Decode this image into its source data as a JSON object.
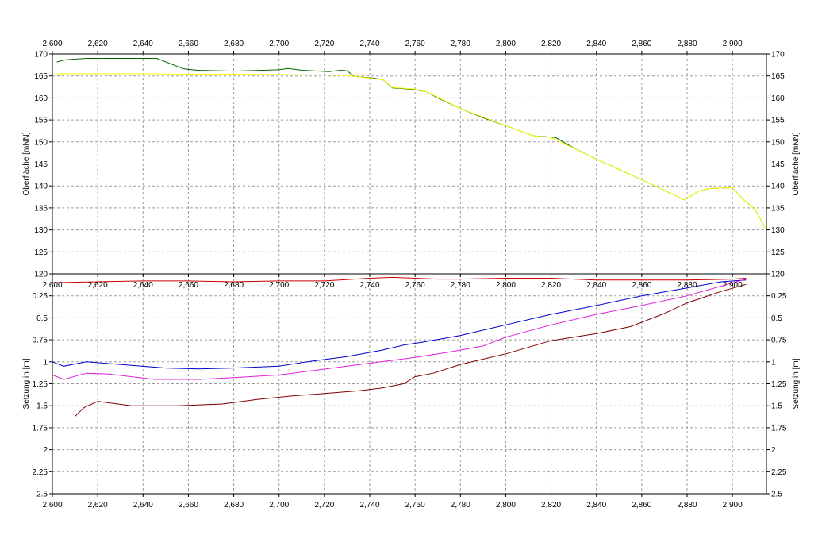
{
  "chart_data": [
    {
      "type": "line",
      "title": "",
      "xlabel": "",
      "ylabel": "Oberfläche [mNN]",
      "ylabel_right": "Oberfläche [mNN]",
      "xlim": [
        2600,
        2915
      ],
      "ylim": [
        120,
        170
      ],
      "x_ticks": [
        2600,
        2620,
        2640,
        2660,
        2680,
        2700,
        2720,
        2740,
        2760,
        2780,
        2800,
        2820,
        2840,
        2860,
        2880,
        2900
      ],
      "x_tick_labels": [
        "2,600",
        "2,620",
        "2,640",
        "2,660",
        "2,680",
        "2,700",
        "2,720",
        "2,740",
        "2,760",
        "2,780",
        "2,800",
        "2,820",
        "2,840",
        "2,860",
        "2,880",
        "2,900"
      ],
      "y_ticks": [
        120,
        125,
        130,
        135,
        140,
        145,
        150,
        155,
        160,
        165,
        170
      ],
      "y_tick_labels": [
        "120",
        "125",
        "130",
        "135",
        "140",
        "145",
        "150",
        "155",
        "160",
        "165",
        "170"
      ],
      "grid": true,
      "series": [
        {
          "color": "#006400",
          "x": [
            2602,
            2606,
            2615,
            2630,
            2646,
            2658,
            2664,
            2680,
            2700,
            2704,
            2710,
            2722,
            2727,
            2730,
            2733,
            2742,
            2746,
            2750,
            2753,
            2760,
            2765,
            2770,
            2780,
            2790,
            2800,
            2812,
            2822,
            2830,
            2840,
            2860,
            2879,
            2885,
            2890,
            2900,
            2905,
            2910,
            2915
          ],
          "y": [
            168.2,
            168.7,
            169.0,
            169.0,
            169.0,
            166.6,
            166.3,
            166.1,
            166.4,
            166.7,
            166.3,
            166.0,
            166.3,
            166.2,
            164.9,
            164.5,
            164.1,
            162.3,
            162.2,
            161.9,
            161.4,
            160.0,
            157.6,
            155.5,
            153.7,
            151.4,
            151.0,
            148.6,
            146.1,
            141.4,
            136.8,
            138.8,
            139.4,
            139.6,
            136.8,
            134.6,
            130.0
          ]
        },
        {
          "color": "#ffff00",
          "x": [
            2602,
            2620,
            2640,
            2660,
            2680,
            2700,
            2720,
            2730,
            2740,
            2746,
            2750,
            2760,
            2765,
            2780,
            2800,
            2812,
            2820,
            2840,
            2860,
            2879,
            2885,
            2890,
            2900,
            2905,
            2910,
            2915
          ],
          "y": [
            165.5,
            165.5,
            165.5,
            165.4,
            165.4,
            165.3,
            165.2,
            165.1,
            164.5,
            164.1,
            162.4,
            162.0,
            161.4,
            157.6,
            153.7,
            151.4,
            151.0,
            146.1,
            141.4,
            136.8,
            138.8,
            139.4,
            139.6,
            136.8,
            134.6,
            130.0
          ]
        }
      ]
    },
    {
      "type": "line",
      "title": "",
      "xlabel": "",
      "ylabel": "Setzung in [m]",
      "ylabel_right": "Setzung in [m]",
      "xlim": [
        2600,
        2915
      ],
      "ylim": [
        2.5,
        0
      ],
      "y_inverted": true,
      "x_ticks": [
        2600,
        2620,
        2640,
        2660,
        2680,
        2700,
        2720,
        2740,
        2760,
        2780,
        2800,
        2820,
        2840,
        2860,
        2880,
        2900
      ],
      "x_tick_labels": [
        "2,600",
        "2,620",
        "2,640",
        "2,660",
        "2,680",
        "2,700",
        "2,720",
        "2,740",
        "2,760",
        "2,780",
        "2,800",
        "2,820",
        "2,840",
        "2,860",
        "2,880",
        "2,900"
      ],
      "y_ticks": [
        0.25,
        0.5,
        0.75,
        1,
        1.25,
        1.5,
        1.75,
        2,
        2.25,
        2.5
      ],
      "y_tick_labels": [
        "0.25",
        "0.5",
        "0.75",
        "1",
        "1.25",
        "1.5",
        "1.75",
        "2",
        "2.25",
        "2.5"
      ],
      "grid": true,
      "series": [
        {
          "color": "#cc0000",
          "x": [
            2600,
            2620,
            2640,
            2660,
            2680,
            2700,
            2720,
            2740,
            2750,
            2760,
            2770,
            2780,
            2800,
            2820,
            2840,
            2860,
            2880,
            2900,
            2906
          ],
          "y": [
            0.1,
            0.09,
            0.08,
            0.08,
            0.09,
            0.08,
            0.08,
            0.05,
            0.04,
            0.05,
            0.06,
            0.06,
            0.05,
            0.05,
            0.07,
            0.07,
            0.07,
            0.06,
            0.05
          ]
        },
        {
          "color": "#0000cc",
          "x": [
            2600,
            2605,
            2615,
            2630,
            2650,
            2665,
            2680,
            2700,
            2715,
            2730,
            2745,
            2755,
            2765,
            2780,
            2800,
            2820,
            2840,
            2860,
            2880,
            2895,
            2906
          ],
          "y": [
            1.0,
            1.05,
            1.0,
            1.03,
            1.07,
            1.08,
            1.07,
            1.05,
            0.99,
            0.94,
            0.87,
            0.81,
            0.77,
            0.7,
            0.58,
            0.46,
            0.36,
            0.25,
            0.16,
            0.09,
            0.07
          ]
        },
        {
          "color": "#e020e0",
          "x": [
            2600,
            2605,
            2615,
            2625,
            2645,
            2665,
            2680,
            2700,
            2715,
            2730,
            2745,
            2760,
            2775,
            2790,
            2800,
            2820,
            2840,
            2860,
            2880,
            2895,
            2906
          ],
          "y": [
            1.15,
            1.2,
            1.13,
            1.14,
            1.2,
            1.2,
            1.18,
            1.15,
            1.1,
            1.05,
            1.0,
            0.95,
            0.89,
            0.82,
            0.72,
            0.58,
            0.46,
            0.36,
            0.25,
            0.14,
            0.06
          ]
        },
        {
          "color": "#800000",
          "x": [
            2610,
            2614,
            2620,
            2635,
            2655,
            2675,
            2690,
            2705,
            2720,
            2735,
            2745,
            2755,
            2760,
            2768,
            2780,
            2800,
            2820,
            2840,
            2855,
            2870,
            2880,
            2895,
            2906
          ],
          "y": [
            1.62,
            1.52,
            1.45,
            1.5,
            1.5,
            1.48,
            1.43,
            1.39,
            1.36,
            1.33,
            1.3,
            1.25,
            1.17,
            1.13,
            1.03,
            0.91,
            0.76,
            0.68,
            0.6,
            0.45,
            0.33,
            0.2,
            0.12
          ]
        }
      ]
    }
  ]
}
